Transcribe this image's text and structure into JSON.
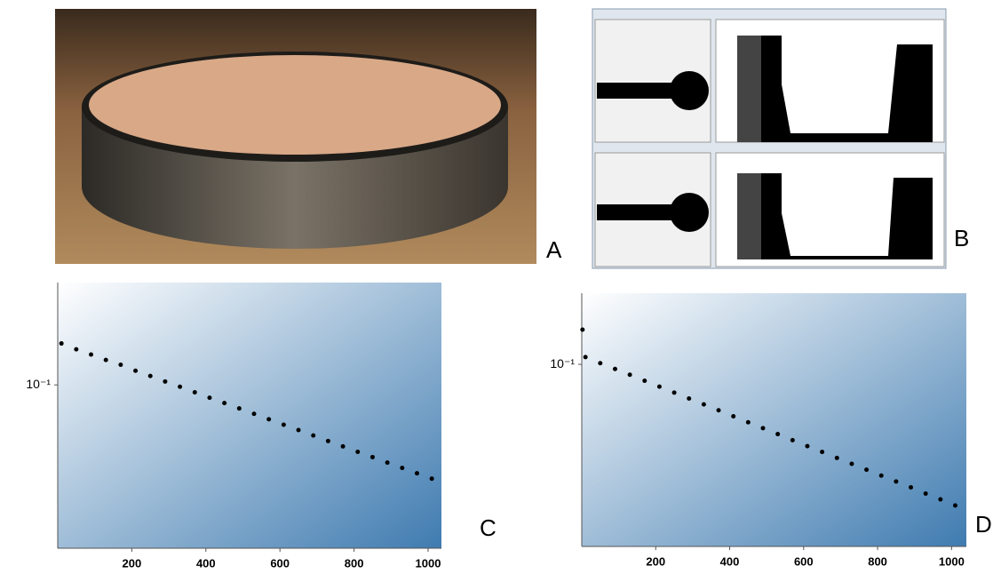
{
  "photo_label": "A",
  "screenshot_label": "B",
  "chart_data": [
    {
      "type": "scatter",
      "panel_label": "C",
      "log_y": true,
      "color": "#000000",
      "xlim": [
        0,
        1036
      ],
      "xticks": [
        200,
        400,
        600,
        800,
        1000
      ],
      "ylim": [
        0.0244,
        0.242
      ],
      "yticks": [
        {
          "value": 0.1,
          "label": "10⁻¹"
        }
      ],
      "x": [
        10,
        50,
        90,
        130,
        170,
        210,
        250,
        290,
        330,
        370,
        410,
        450,
        490,
        530,
        570,
        610,
        650,
        690,
        730,
        770,
        810,
        850,
        890,
        930,
        970,
        1010
      ],
      "values": [
        0.143,
        0.136,
        0.13,
        0.124,
        0.119,
        0.113,
        0.108,
        0.103,
        0.0984,
        0.0938,
        0.0895,
        0.0855,
        0.0816,
        0.0779,
        0.0743,
        0.0709,
        0.0677,
        0.0646,
        0.0616,
        0.0588,
        0.0561,
        0.0536,
        0.0511,
        0.0488,
        0.0466,
        0.0445
      ]
    },
    {
      "type": "scatter",
      "panel_label": "D",
      "log_y": true,
      "color": "#000000",
      "xlim": [
        0,
        1040
      ],
      "xticks": [
        200,
        400,
        600,
        800,
        1000
      ],
      "ylim": [
        0.0207,
        0.185
      ],
      "yticks": [
        {
          "value": 0.1,
          "label": "10⁻¹"
        }
      ],
      "x": [
        2,
        10,
        50,
        90,
        130,
        170,
        210,
        250,
        290,
        330,
        370,
        410,
        450,
        490,
        530,
        570,
        610,
        650,
        690,
        730,
        770,
        810,
        850,
        890,
        930,
        970,
        1010
      ],
      "values": [
        0.135,
        0.1065,
        0.101,
        0.0961,
        0.0914,
        0.0868,
        0.0825,
        0.0783,
        0.0744,
        0.0707,
        0.0672,
        0.0638,
        0.0606,
        0.0576,
        0.0547,
        0.0519,
        0.0493,
        0.0469,
        0.0445,
        0.0423,
        0.0402,
        0.0382,
        0.0363,
        0.0345,
        0.0327,
        0.0311,
        0.0295
      ]
    }
  ]
}
